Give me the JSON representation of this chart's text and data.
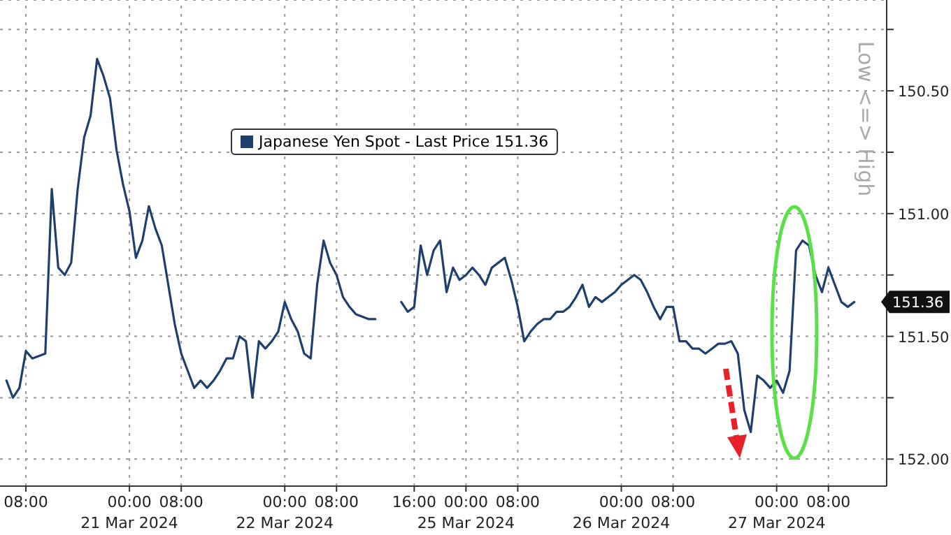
{
  "chart_data": {
    "type": "line",
    "ylabel": "Low <=> High",
    "categories": [
      null,
      null,
      null,
      "08:00",
      null,
      null,
      null,
      null,
      null,
      null,
      null,
      null,
      null,
      null,
      null,
      null,
      null,
      null,
      null,
      "00:00\n21 Mar 2024",
      null,
      null,
      null,
      null,
      null,
      null,
      null,
      "08:00",
      null,
      null,
      null,
      null,
      null,
      null,
      null,
      null,
      null,
      null,
      null,
      null,
      null,
      null,
      null,
      "00:00\n22 Mar 2024",
      null,
      null,
      null,
      null,
      null,
      null,
      null,
      "08:00",
      null,
      null,
      null,
      null,
      null,
      null,
      null,
      null,
      null,
      null,
      null,
      "16:00",
      null,
      null,
      null,
      null,
      null,
      null,
      null,
      "00:00\n25 Mar 2024",
      null,
      null,
      null,
      null,
      null,
      null,
      null,
      "08:00",
      null,
      null,
      null,
      null,
      null,
      null,
      null,
      null,
      null,
      null,
      null,
      null,
      null,
      null,
      null,
      "00:00\n26 Mar 2024",
      null,
      null,
      null,
      null,
      null,
      null,
      null,
      "08:00",
      null,
      null,
      null,
      null,
      null,
      null,
      null,
      null,
      null,
      null,
      null,
      null,
      null,
      null,
      null,
      "00:00\n27 Mar 2024",
      null,
      null,
      null,
      null,
      null,
      null,
      null,
      "08:00",
      null,
      null,
      null,
      null
    ],
    "series": [
      {
        "name": "Japanese Yen Spot - Last Price 151.36",
        "color": "#1f3f6e",
        "values": [
          151.68,
          151.75,
          151.71,
          151.56,
          151.59,
          151.58,
          151.57,
          150.9,
          151.22,
          151.25,
          151.2,
          150.9,
          150.69,
          150.6,
          150.37,
          150.44,
          150.53,
          150.74,
          150.88,
          150.99,
          151.18,
          151.11,
          150.97,
          151.06,
          151.13,
          151.29,
          151.45,
          151.57,
          151.64,
          151.71,
          151.68,
          151.71,
          151.68,
          151.64,
          151.59,
          151.59,
          151.5,
          151.52,
          151.75,
          151.52,
          151.55,
          151.52,
          151.48,
          151.36,
          151.43,
          151.48,
          151.57,
          151.59,
          151.29,
          151.11,
          151.2,
          151.25,
          151.34,
          151.38,
          151.41,
          151.42,
          151.43,
          151.43,
          null,
          null,
          null,
          151.36,
          151.4,
          151.38,
          151.13,
          151.25,
          151.15,
          151.11,
          151.32,
          151.22,
          151.27,
          151.25,
          151.22,
          151.25,
          151.29,
          151.22,
          151.2,
          151.18,
          151.27,
          151.38,
          151.52,
          151.48,
          151.45,
          151.43,
          151.43,
          151.4,
          151.4,
          151.38,
          151.34,
          151.29,
          151.38,
          151.34,
          151.36,
          151.34,
          151.32,
          151.29,
          151.27,
          151.25,
          151.27,
          151.32,
          151.38,
          151.43,
          151.38,
          151.38,
          151.52,
          151.52,
          151.55,
          151.55,
          151.57,
          151.55,
          151.53,
          151.53,
          151.52,
          151.57,
          151.8,
          151.89,
          151.66,
          151.68,
          151.71,
          151.68,
          151.73,
          151.64,
          151.15,
          151.11,
          151.13,
          151.25,
          151.32,
          151.22,
          151.29,
          151.36,
          151.38,
          151.36
        ]
      }
    ],
    "ylim": [
      152.11,
      150.13
    ],
    "yticks": [
      {
        "value": 150.25,
        "label": null
      },
      {
        "value": 150.5,
        "label": "150.50"
      },
      {
        "value": 150.75,
        "label": null
      },
      {
        "value": 151,
        "label": "151.00"
      },
      {
        "value": 151.25,
        "label": null
      },
      {
        "value": 151.5,
        "label": "151.50"
      },
      {
        "value": 151.75,
        "label": null
      },
      {
        "value": 152,
        "label": "152.00"
      }
    ],
    "annotations": [
      "151.36"
    ],
    "grid": true,
    "legend": "top",
    "line_style": "solid"
  }
}
